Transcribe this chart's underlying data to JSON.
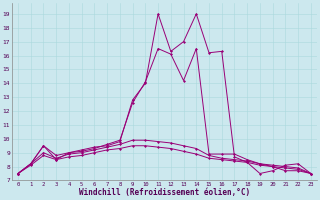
{
  "xlabel": "Windchill (Refroidissement éolien,°C)",
  "bg_color": "#cce8ee",
  "line_color": "#990077",
  "x_ticks": [
    0,
    1,
    2,
    3,
    4,
    5,
    6,
    7,
    8,
    9,
    10,
    11,
    12,
    13,
    14,
    15,
    16,
    17,
    18,
    19,
    20,
    21,
    22,
    23
  ],
  "ylim": [
    7,
    19.8
  ],
  "xlim": [
    -0.5,
    23.5
  ],
  "series": [
    {
      "x": [
        0,
        1,
        2,
        3,
        4,
        5,
        6,
        7,
        8,
        9,
        10,
        11,
        12,
        13,
        14,
        15,
        16,
        17,
        18,
        19,
        20,
        21,
        22,
        23
      ],
      "y": [
        7.5,
        8.2,
        9.5,
        8.5,
        9.0,
        9.2,
        9.4,
        9.5,
        9.8,
        12.8,
        14.0,
        19.0,
        16.3,
        17.0,
        19.0,
        16.2,
        16.3,
        8.7,
        8.3,
        7.5,
        7.7,
        8.1,
        8.2,
        7.5
      ]
    },
    {
      "x": [
        0,
        1,
        2,
        3,
        4,
        5,
        6,
        7,
        8,
        9,
        10,
        11,
        12,
        13,
        14,
        15,
        16,
        17,
        18,
        19,
        20,
        21,
        22,
        23
      ],
      "y": [
        7.5,
        8.2,
        9.5,
        8.8,
        9.0,
        9.1,
        9.3,
        9.6,
        9.9,
        12.6,
        14.1,
        16.5,
        16.1,
        14.2,
        16.5,
        8.9,
        8.9,
        8.9,
        8.5,
        8.2,
        8.0,
        7.7,
        7.7,
        7.5
      ]
    },
    {
      "x": [
        0,
        1,
        2,
        3,
        4,
        5,
        6,
        7,
        8,
        9,
        10,
        11,
        12,
        13,
        14,
        15,
        16,
        17,
        18,
        19,
        20,
        21,
        22,
        23
      ],
      "y": [
        7.5,
        8.2,
        9.0,
        8.6,
        8.9,
        9.0,
        9.2,
        9.4,
        9.6,
        9.9,
        9.9,
        9.8,
        9.7,
        9.5,
        9.3,
        8.8,
        8.6,
        8.5,
        8.4,
        8.2,
        8.1,
        8.0,
        7.9,
        7.5
      ]
    },
    {
      "x": [
        0,
        1,
        2,
        3,
        4,
        5,
        6,
        7,
        8,
        9,
        10,
        11,
        12,
        13,
        14,
        15,
        16,
        17,
        18,
        19,
        20,
        21,
        22,
        23
      ],
      "y": [
        7.5,
        8.1,
        8.8,
        8.5,
        8.7,
        8.8,
        9.0,
        9.2,
        9.3,
        9.5,
        9.5,
        9.4,
        9.3,
        9.1,
        8.9,
        8.6,
        8.5,
        8.4,
        8.3,
        8.1,
        8.0,
        7.9,
        7.8,
        7.5
      ]
    }
  ]
}
